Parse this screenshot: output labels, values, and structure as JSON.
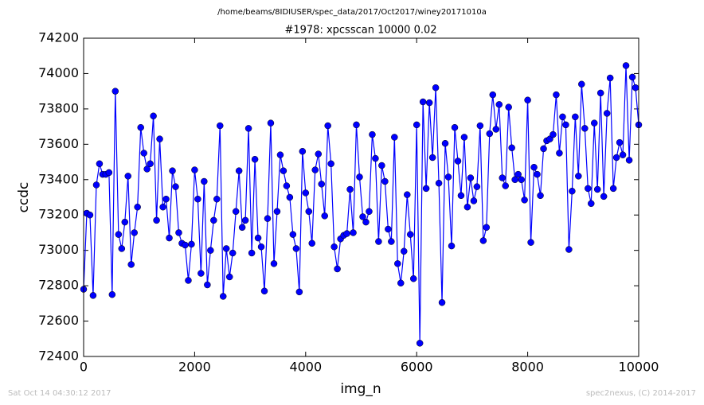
{
  "chart_data": {
    "type": "line",
    "suptitle": "/home/beams/8IDIUSER/spec_data/2017/Oct2017/winey20171010a",
    "title": "#1978: xpcsscan 10000 0.02",
    "xlabel": "img_n",
    "ylabel": "ccdc",
    "footer_left": "Sat Oct 14 04:30:12 2017",
    "footer_right": "spec2nexus, (C) 2014-2017",
    "xlim": [
      0,
      10000
    ],
    "xticks": [
      0,
      2000,
      4000,
      6000,
      8000,
      10000
    ],
    "ylim": [
      72400,
      74200
    ],
    "yticks": [
      72400,
      72600,
      72800,
      73000,
      73200,
      73400,
      73600,
      73800,
      74000,
      74200
    ],
    "grid": false,
    "x": [
      0,
      57,
      114,
      171,
      229,
      286,
      343,
      400,
      457,
      514,
      571,
      629,
      686,
      743,
      800,
      857,
      914,
      971,
      1029,
      1086,
      1143,
      1200,
      1257,
      1314,
      1371,
      1429,
      1486,
      1543,
      1600,
      1657,
      1714,
      1771,
      1829,
      1886,
      1943,
      2000,
      2057,
      2114,
      2171,
      2229,
      2286,
      2343,
      2400,
      2457,
      2514,
      2571,
      2629,
      2686,
      2743,
      2800,
      2857,
      2914,
      2971,
      3029,
      3086,
      3143,
      3200,
      3257,
      3314,
      3371,
      3429,
      3486,
      3543,
      3600,
      3657,
      3714,
      3771,
      3829,
      3886,
      3943,
      4000,
      4057,
      4114,
      4171,
      4229,
      4286,
      4343,
      4400,
      4457,
      4514,
      4571,
      4629,
      4686,
      4743,
      4800,
      4857,
      4914,
      4971,
      5029,
      5086,
      5143,
      5200,
      5257,
      5314,
      5371,
      5429,
      5486,
      5543,
      5600,
      5657,
      5714,
      5771,
      5829,
      5886,
      5943,
      6000,
      6057,
      6114,
      6171,
      6229,
      6286,
      6343,
      6400,
      6457,
      6514,
      6571,
      6629,
      6686,
      6743,
      6800,
      6857,
      6914,
      6971,
      7029,
      7086,
      7143,
      7200,
      7257,
      7314,
      7371,
      7429,
      7486,
      7543,
      7600,
      7657,
      7714,
      7771,
      7829,
      7886,
      7943,
      8000,
      8057,
      8114,
      8171,
      8229,
      8286,
      8343,
      8400,
      8457,
      8514,
      8571,
      8629,
      8686,
      8743,
      8800,
      8857,
      8914,
      8971,
      9029,
      9086,
      9143,
      9200,
      9257,
      9314,
      9371,
      9429,
      9486,
      9543,
      9600,
      9657,
      9714,
      9771,
      9829,
      9886,
      9943,
      10000
    ],
    "series": [
      {
        "name": "ccdc",
        "color": "#0000ff",
        "values": [
          72780,
          73210,
          73200,
          72745,
          73370,
          73490,
          73430,
          73430,
          73440,
          72750,
          73900,
          73090,
          73010,
          73160,
          73420,
          72920,
          73100,
          73245,
          73695,
          73550,
          73460,
          73490,
          73760,
          73170,
          73630,
          73245,
          73290,
          73070,
          73450,
          73360,
          73100,
          73040,
          73030,
          72830,
          73035,
          73455,
          73290,
          72870,
          73390,
          72805,
          73000,
          73170,
          73290,
          73705,
          72740,
          73010,
          72850,
          72985,
          73220,
          73450,
          73130,
          73170,
          73690,
          72985,
          73515,
          73070,
          73020,
          72770,
          73180,
          73720,
          72925,
          73220,
          73540,
          73450,
          73365,
          73300,
          73090,
          73010,
          72765,
          73560,
          73325,
          73220,
          73040,
          73455,
          73545,
          73375,
          73195,
          73705,
          73490,
          73020,
          72895,
          73065,
          73085,
          73095,
          73345,
          73100,
          73710,
          73415,
          73190,
          73160,
          73220,
          73655,
          73520,
          73050,
          73480,
          73390,
          73120,
          73050,
          73640,
          72925,
          72815,
          72995,
          73315,
          73090,
          72840,
          73710,
          72475,
          73840,
          73350,
          73835,
          73525,
          73920,
          73380,
          72705,
          73605,
          73415,
          73025,
          73695,
          73505,
          73310,
          73640,
          73245,
          73410,
          73280,
          73360,
          73705,
          73055,
          73130,
          73660,
          73880,
          73685,
          73825,
          73410,
          73365,
          73810,
          73580,
          73400,
          73430,
          73400,
          73285,
          73850,
          73045,
          73470,
          73430,
          73310,
          73575,
          73620,
          73630,
          73655,
          73880,
          73550,
          73755,
          73710,
          73005,
          73335,
          73755,
          73420,
          73940,
          73690,
          73350,
          73265,
          73720,
          73345,
          73890,
          73305,
          73775,
          73975,
          73350,
          73525,
          73610,
          73540,
          74045,
          73510,
          73980,
          73920,
          73710
        ]
      }
    ]
  }
}
